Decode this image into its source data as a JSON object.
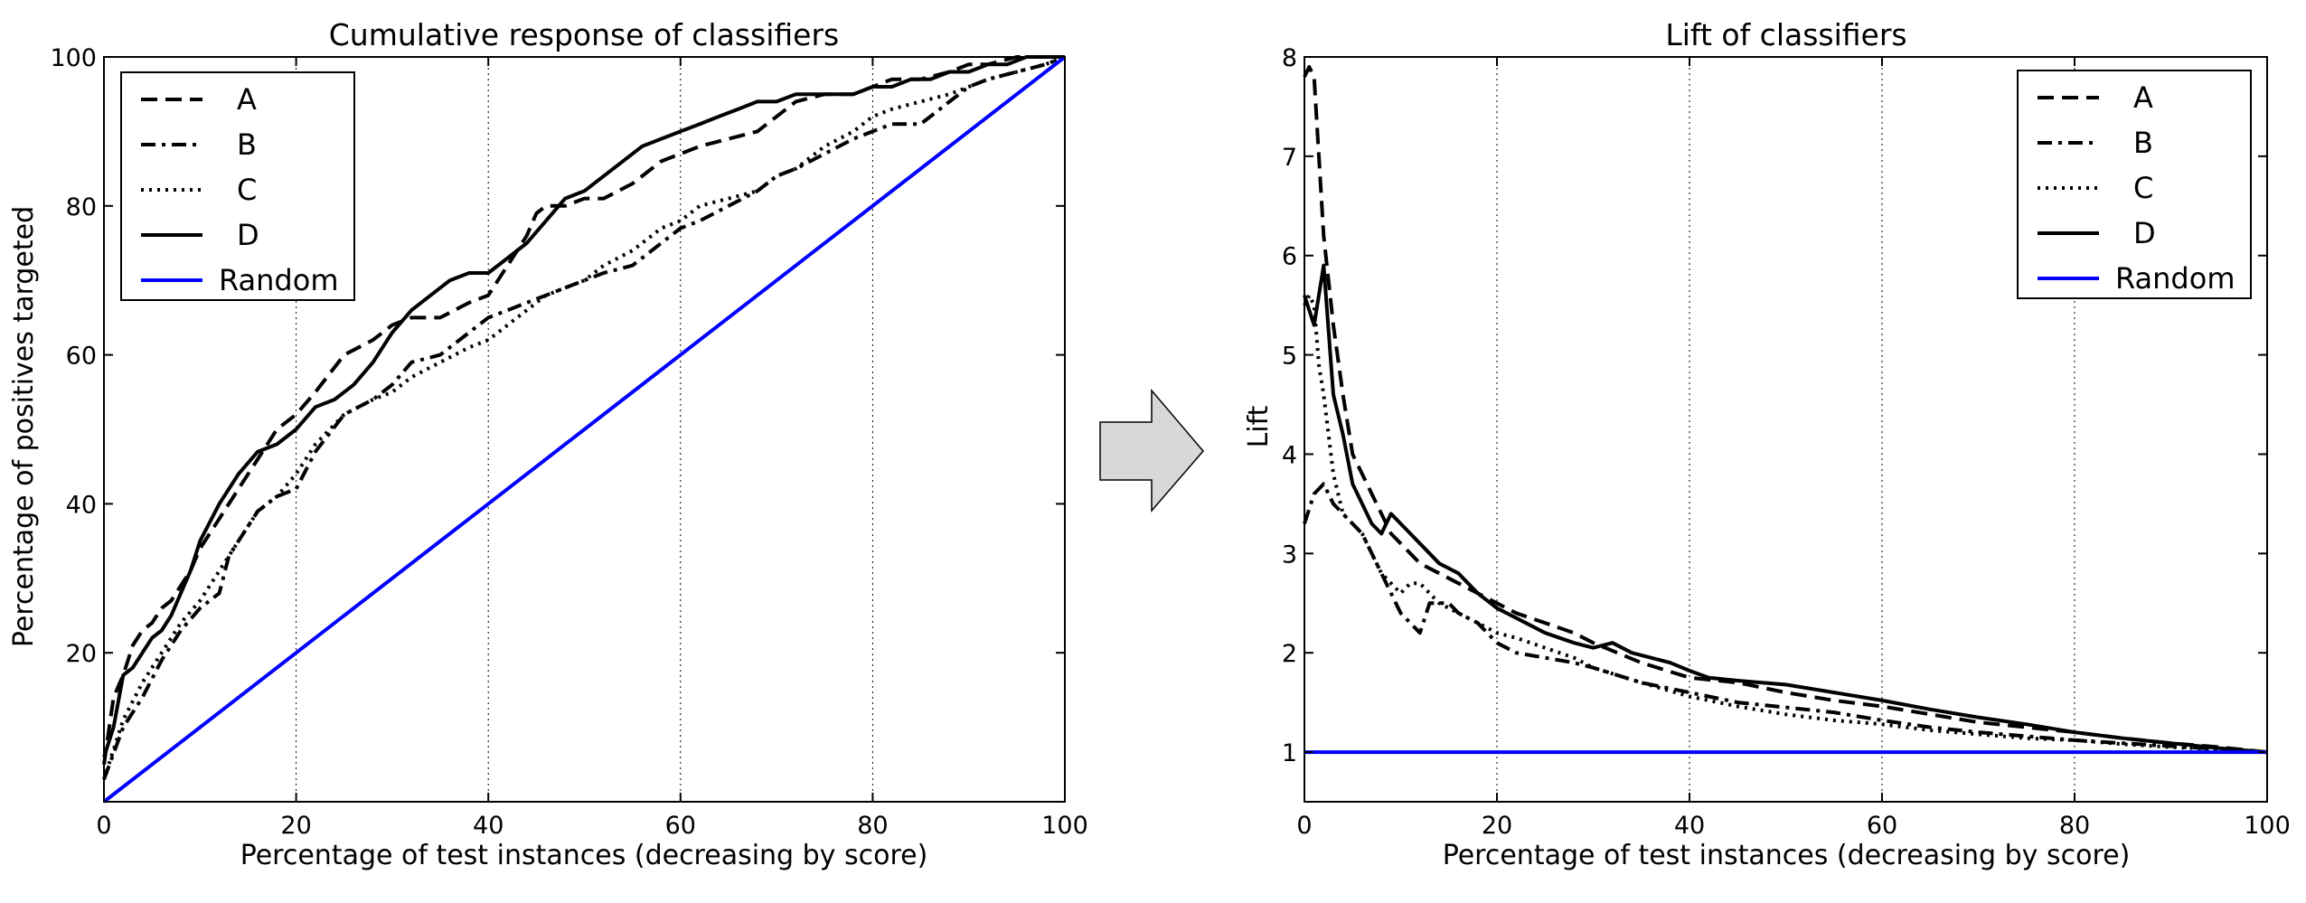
{
  "chart_data": [
    {
      "type": "line",
      "title": "Cumulative response of classifiers",
      "xlabel": "Percentage of test instances (decreasing by score)",
      "ylabel": "Percentage of positives targeted",
      "xlim": [
        0,
        100
      ],
      "ylim": [
        0,
        100
      ],
      "xticks": [
        "0",
        "20",
        "40",
        "60",
        "80",
        "100"
      ],
      "yticks": [
        "20",
        "40",
        "60",
        "80",
        "100"
      ],
      "grid": "vertical dotted at x ticks",
      "legend": "upper left",
      "series": [
        {
          "name": "A",
          "style": "dashed",
          "color": "#000000",
          "x": [
            0,
            1,
            2,
            3,
            4,
            5,
            6,
            7,
            8,
            9,
            10,
            12,
            14,
            16,
            18,
            20,
            22,
            25,
            28,
            30,
            32,
            35,
            38,
            40,
            42,
            44,
            45,
            46,
            48,
            50,
            52,
            55,
            58,
            60,
            62,
            65,
            68,
            70,
            72,
            75,
            78,
            80,
            82,
            85,
            88,
            90,
            92,
            95,
            98,
            100
          ],
          "y": [
            5,
            14,
            17,
            21,
            23,
            24,
            26,
            27,
            29,
            31,
            34,
            38,
            42,
            46,
            50,
            52,
            55,
            60,
            62,
            64,
            65,
            65,
            67,
            68,
            72,
            76,
            79,
            80,
            80,
            81,
            81,
            83,
            86,
            87,
            88,
            89,
            90,
            92,
            94,
            95,
            95,
            96,
            97,
            97,
            98,
            99,
            99,
            100,
            100,
            100
          ]
        },
        {
          "name": "B",
          "style": "dashdot",
          "color": "#000000",
          "x": [
            0,
            2,
            4,
            6,
            8,
            10,
            12,
            13,
            14,
            16,
            18,
            20,
            22,
            25,
            28,
            30,
            32,
            35,
            38,
            40,
            42,
            44,
            46,
            48,
            50,
            52,
            55,
            58,
            60,
            62,
            65,
            68,
            70,
            72,
            75,
            78,
            80,
            82,
            85,
            88,
            90,
            92,
            95,
            98,
            100
          ],
          "y": [
            3,
            10,
            14,
            19,
            23,
            26,
            28,
            33,
            35,
            39,
            41,
            42,
            47,
            52,
            54,
            56,
            59,
            60,
            63,
            65,
            66,
            67,
            68,
            69,
            70,
            71,
            72,
            75,
            77,
            78,
            80,
            82,
            84,
            85,
            87,
            89,
            90,
            91,
            91,
            94,
            96,
            97,
            98,
            99,
            100
          ]
        },
        {
          "name": "C",
          "style": "dotted",
          "color": "#000000",
          "x": [
            0,
            2,
            4,
            6,
            8,
            10,
            12,
            14,
            16,
            18,
            20,
            22,
            25,
            28,
            30,
            32,
            35,
            38,
            40,
            42,
            44,
            46,
            48,
            50,
            52,
            55,
            58,
            60,
            62,
            65,
            68,
            70,
            72,
            75,
            78,
            80,
            82,
            85,
            88,
            90,
            92,
            95,
            98,
            100
          ],
          "y": [
            3,
            11,
            16,
            20,
            24,
            27,
            31,
            35,
            39,
            41,
            44,
            48,
            52,
            54,
            55,
            57,
            59,
            61,
            62,
            64,
            66,
            68,
            69,
            70,
            72,
            74,
            77,
            78,
            80,
            81,
            82,
            84,
            85,
            88,
            90,
            92,
            93,
            94,
            95,
            96,
            97,
            98,
            99,
            100
          ]
        },
        {
          "name": "D",
          "style": "solid",
          "color": "#000000",
          "x": [
            0,
            1,
            2,
            3,
            4,
            5,
            6,
            7,
            8,
            9,
            10,
            12,
            14,
            16,
            18,
            20,
            22,
            24,
            26,
            28,
            30,
            32,
            34,
            36,
            38,
            40,
            42,
            44,
            46,
            48,
            50,
            52,
            54,
            56,
            58,
            60,
            62,
            64,
            66,
            68,
            70,
            72,
            75,
            78,
            80,
            82,
            84,
            86,
            88,
            90,
            92,
            94,
            96,
            98,
            100
          ],
          "y": [
            6,
            10,
            17,
            18,
            20,
            22,
            23,
            25,
            28,
            31,
            35,
            40,
            44,
            47,
            48,
            50,
            53,
            54,
            56,
            59,
            63,
            66,
            68,
            70,
            71,
            71,
            73,
            75,
            78,
            81,
            82,
            84,
            86,
            88,
            89,
            90,
            91,
            92,
            93,
            94,
            94,
            95,
            95,
            95,
            96,
            96,
            97,
            97,
            98,
            98,
            99,
            99,
            100,
            100,
            100
          ]
        },
        {
          "name": "Random",
          "style": "solid",
          "color": "#0000ff",
          "x": [
            0,
            100
          ],
          "y": [
            0,
            100
          ]
        }
      ]
    },
    {
      "type": "line",
      "title": "Lift of classifiers",
      "xlabel": "Percentage of test instances (decreasing by score)",
      "ylabel": "Lift",
      "xlim": [
        0,
        100
      ],
      "ylim": [
        0.5,
        8
      ],
      "xticks": [
        "0",
        "20",
        "40",
        "60",
        "80",
        "100"
      ],
      "yticks": [
        "1",
        "2",
        "3",
        "4",
        "5",
        "6",
        "7",
        "8"
      ],
      "grid": "vertical dotted at x ticks",
      "legend": "upper right",
      "series": [
        {
          "name": "A",
          "style": "dashed",
          "color": "#000000",
          "x": [
            0,
            0.5,
            1,
            1.5,
            2,
            3,
            4,
            5,
            6,
            7,
            8,
            9,
            10,
            12,
            14,
            16,
            18,
            20,
            22,
            25,
            28,
            30,
            35,
            40,
            45,
            50,
            55,
            60,
            65,
            70,
            75,
            80,
            85,
            90,
            95,
            100
          ],
          "y": [
            7.8,
            7.9,
            7.8,
            7.0,
            6.2,
            5.3,
            4.6,
            4.0,
            3.8,
            3.6,
            3.4,
            3.2,
            3.1,
            2.9,
            2.8,
            2.7,
            2.6,
            2.5,
            2.4,
            2.3,
            2.2,
            2.1,
            1.9,
            1.75,
            1.7,
            1.6,
            1.52,
            1.46,
            1.38,
            1.3,
            1.25,
            1.2,
            1.14,
            1.09,
            1.05,
            1.0
          ]
        },
        {
          "name": "B",
          "style": "dashdot",
          "color": "#000000",
          "x": [
            0,
            1,
            2,
            3,
            4,
            5,
            6,
            7,
            8,
            9,
            10,
            11,
            12,
            13,
            14,
            15,
            16,
            18,
            20,
            22,
            25,
            28,
            30,
            35,
            40,
            45,
            50,
            55,
            60,
            65,
            70,
            75,
            80,
            85,
            90,
            95,
            100
          ],
          "y": [
            3.3,
            3.6,
            3.7,
            3.5,
            3.4,
            3.3,
            3.2,
            3.0,
            2.8,
            2.6,
            2.4,
            2.3,
            2.2,
            2.5,
            2.5,
            2.5,
            2.4,
            2.3,
            2.1,
            2.0,
            1.95,
            1.9,
            1.85,
            1.7,
            1.6,
            1.5,
            1.45,
            1.4,
            1.32,
            1.25,
            1.2,
            1.16,
            1.12,
            1.09,
            1.06,
            1.03,
            1.0
          ]
        },
        {
          "name": "C",
          "style": "dotted",
          "color": "#000000",
          "x": [
            0,
            0.5,
            1,
            1.5,
            2,
            3,
            4,
            5,
            6,
            7,
            8,
            9,
            10,
            11,
            12,
            14,
            16,
            18,
            20,
            22,
            25,
            28,
            30,
            35,
            40,
            45,
            50,
            55,
            60,
            65,
            70,
            75,
            80,
            85,
            90,
            95,
            100
          ],
          "y": [
            5.5,
            5.6,
            5.5,
            4.9,
            4.6,
            3.8,
            3.4,
            3.3,
            3.2,
            3.0,
            2.8,
            2.7,
            2.6,
            2.7,
            2.7,
            2.5,
            2.4,
            2.3,
            2.2,
            2.15,
            2.05,
            1.95,
            1.85,
            1.7,
            1.56,
            1.46,
            1.38,
            1.32,
            1.28,
            1.22,
            1.18,
            1.14,
            1.12,
            1.08,
            1.05,
            1.03,
            1.0
          ]
        },
        {
          "name": "D",
          "style": "solid",
          "color": "#000000",
          "x": [
            0,
            1,
            2,
            3,
            4,
            5,
            6,
            7,
            8,
            9,
            10,
            11,
            12,
            13,
            14,
            15,
            16,
            18,
            20,
            22,
            25,
            28,
            30,
            32,
            34,
            36,
            38,
            40,
            42,
            45,
            50,
            55,
            60,
            65,
            70,
            75,
            80,
            85,
            90,
            95,
            100
          ],
          "y": [
            5.6,
            5.3,
            5.9,
            4.6,
            4.2,
            3.7,
            3.5,
            3.3,
            3.2,
            3.4,
            3.3,
            3.2,
            3.1,
            3.0,
            2.9,
            2.85,
            2.8,
            2.6,
            2.45,
            2.35,
            2.2,
            2.1,
            2.05,
            2.1,
            2.0,
            1.95,
            1.9,
            1.82,
            1.75,
            1.72,
            1.68,
            1.6,
            1.52,
            1.43,
            1.35,
            1.28,
            1.2,
            1.14,
            1.09,
            1.04,
            1.0
          ]
        },
        {
          "name": "Random",
          "style": "solid",
          "color": "#0000ff",
          "x": [
            0,
            100
          ],
          "y": [
            1,
            1
          ]
        }
      ]
    }
  ]
}
